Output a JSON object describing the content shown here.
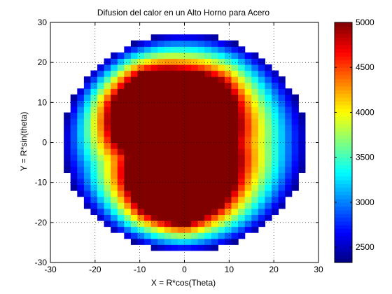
{
  "chart_data": {
    "type": "heatmap",
    "title": "Difusion del calor en un Alto Horno para Acero",
    "xlabel": "X = R*cos(Theta)",
    "ylabel": "Y = R*sin(theta)",
    "xlim": [
      -30,
      30
    ],
    "ylim": [
      -30,
      30
    ],
    "xticks": [
      -30,
      -20,
      -10,
      0,
      10,
      20,
      30
    ],
    "yticks": [
      -30,
      -20,
      -10,
      0,
      10,
      20,
      30
    ],
    "grid": "on (dotted)",
    "colormap": "jet",
    "colorbar": {
      "position": "right",
      "range": [
        2330,
        5000
      ],
      "ticks": [
        2500,
        3000,
        3500,
        4000,
        4500,
        5000
      ]
    },
    "field": {
      "domain": "disk",
      "outer_radius": 27.2,
      "edge_value": 2400,
      "max_value": 5000,
      "hot_core_boundary_samples": [
        {
          "theta_deg": 0,
          "r": 11.5
        },
        {
          "theta_deg": 30,
          "r": 14.0
        },
        {
          "theta_deg": 60,
          "r": 17.5
        },
        {
          "theta_deg": 90,
          "r": 18.0
        },
        {
          "theta_deg": 120,
          "r": 20.0
        },
        {
          "theta_deg": 150,
          "r": 19.0
        },
        {
          "theta_deg": 165,
          "r": 17.5
        },
        {
          "theta_deg": 180,
          "r": 15.5
        },
        {
          "theta_deg": 195,
          "r": 13.0
        },
        {
          "theta_deg": 210,
          "r": 15.5
        },
        {
          "theta_deg": 240,
          "r": 19.5
        },
        {
          "theta_deg": 270,
          "r": 20.5
        },
        {
          "theta_deg": 300,
          "r": 17.5
        },
        {
          "theta_deg": 330,
          "r": 14.0
        },
        {
          "theta_deg": 360,
          "r": 11.5
        }
      ]
    }
  }
}
